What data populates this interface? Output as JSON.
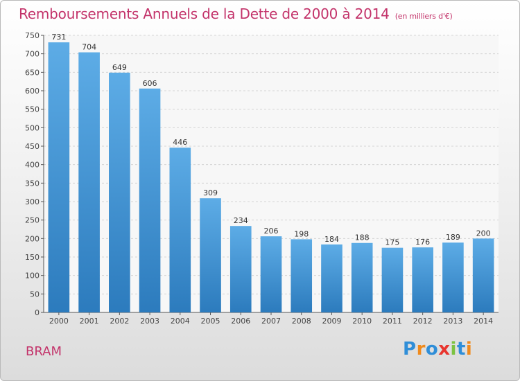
{
  "chart_data": {
    "type": "bar",
    "title": "Remboursements Annuels de la Dette de 2000 à 2014",
    "unit": "(en milliers d'€)",
    "categories": [
      "2000",
      "2001",
      "2002",
      "2003",
      "2004",
      "2005",
      "2006",
      "2007",
      "2008",
      "2009",
      "2010",
      "2011",
      "2012",
      "2013",
      "2014"
    ],
    "values": [
      731,
      704,
      649,
      606,
      446,
      309,
      234,
      206,
      198,
      184,
      188,
      175,
      176,
      189,
      200
    ],
    "ylim": [
      0,
      750
    ],
    "yticks": [
      0,
      50,
      100,
      150,
      200,
      250,
      300,
      350,
      400,
      450,
      500,
      550,
      600,
      650,
      700,
      750
    ],
    "grid": true,
    "colors": {
      "bar_top": "#5dace6",
      "bar_bottom": "#2c7bbd",
      "title": "#c3336a"
    }
  },
  "commune": "BRAM",
  "logo": {
    "text": "Proxiti",
    "colors": [
      "#2f8ed8",
      "#f08a1c",
      "#2f8ed8",
      "#e8352e",
      "#7cc242",
      "#2f8ed8",
      "#f08a1c"
    ]
  }
}
